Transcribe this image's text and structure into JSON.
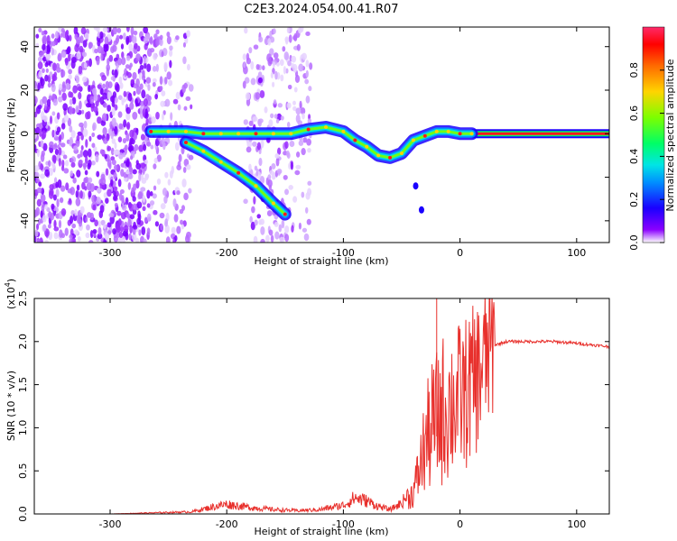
{
  "title": "C2E3.2024.054.00.41.R07",
  "chart_data": [
    {
      "type": "heatmap",
      "xlabel": "Height of straight line (km)",
      "ylabel": "Frequency (Hz)",
      "xlim": [
        -365,
        128
      ],
      "ylim": [
        -50,
        49
      ],
      "xticks": [
        -300,
        -200,
        -100,
        0,
        100
      ],
      "yticks": [
        -40,
        -20,
        0,
        20,
        40
      ],
      "colorbar": {
        "label": "Normalized spectral amplitude",
        "range": [
          0.0,
          1.0
        ],
        "ticks": [
          "0.0",
          "0.2",
          "0.4",
          "0.6",
          "0.8"
        ],
        "colors": [
          "#ffffff",
          "#8a00ff",
          "#1a00ff",
          "#0090ff",
          "#00e5e5",
          "#00ff66",
          "#7cff00",
          "#ffd400",
          "#ff6a00",
          "#ff0000",
          "#ff2a6a"
        ]
      },
      "signal_track": {
        "x": [
          -265,
          -250,
          -235,
          -220,
          -205,
          -190,
          -175,
          -160,
          -145,
          -130,
          -115,
          -100,
          -90,
          -80,
          -70,
          -60,
          -50,
          -40,
          -30,
          -20,
          -10,
          0,
          10
        ],
        "y": [
          1,
          1,
          1,
          0,
          0,
          0,
          0,
          0,
          0,
          2,
          3,
          1,
          -3,
          -6,
          -10,
          -11,
          -9,
          -3,
          -1,
          1,
          1,
          0,
          0
        ]
      },
      "branch_track": {
        "x": [
          -235,
          -220,
          -205,
          -190,
          -175,
          -160,
          -150
        ],
        "y": [
          -4,
          -8,
          -13,
          -18,
          -24,
          -32,
          -37
        ]
      },
      "steady_line": {
        "x_start": 10,
        "x_end": 128,
        "y": 0
      }
    },
    {
      "type": "line",
      "xlabel": "Height of straight line (km)",
      "ylabel": "SNR (10 * v/v)",
      "multiplier_label": "(x10",
      "multiplier_exp": "4",
      "xlim": [
        -365,
        128
      ],
      "ylim": [
        0,
        2.5
      ],
      "xticks": [
        -300,
        -200,
        -100,
        0,
        100
      ],
      "yticks": [
        "0.0",
        "0.5",
        "1.0",
        "1.5",
        "2.0",
        "2.5"
      ],
      "series": [
        {
          "color": "#e8302c",
          "x": [
            -365,
            -300,
            -230,
            -210,
            -200,
            -180,
            -160,
            -140,
            -120,
            -100,
            -90,
            -80,
            -70,
            -60,
            -50,
            -40,
            -35,
            -30,
            -25,
            -20,
            -15,
            -10,
            -5,
            0,
            5,
            10,
            15,
            20,
            25,
            30,
            40,
            50,
            60,
            80,
            100,
            128
          ],
          "y": [
            0.0,
            0.0,
            0.02,
            0.07,
            0.09,
            0.06,
            0.04,
            0.03,
            0.04,
            0.08,
            0.15,
            0.12,
            0.07,
            0.04,
            0.1,
            0.25,
            0.5,
            0.8,
            1.0,
            1.1,
            1.2,
            1.25,
            1.3,
            1.35,
            1.4,
            1.5,
            1.6,
            1.75,
            1.9,
            1.96,
            2.0,
            2.0,
            2.0,
            2.0,
            1.98,
            1.94
          ]
        }
      ],
      "spike": {
        "x": -20,
        "y": 2.5
      }
    }
  ]
}
